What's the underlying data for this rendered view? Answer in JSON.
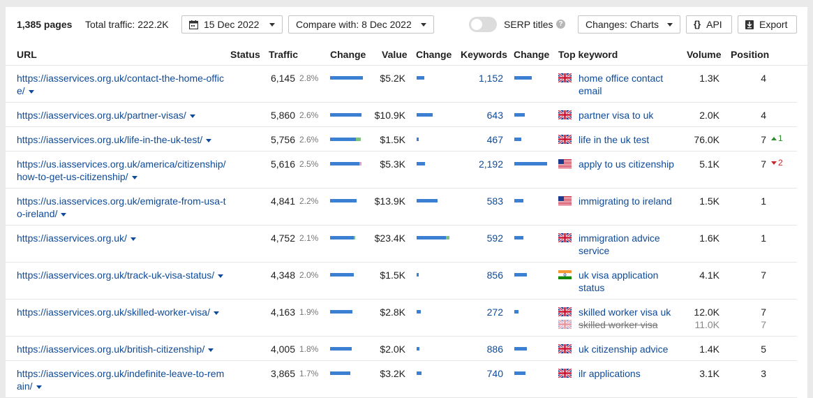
{
  "toolbar": {
    "pages": "1,385 pages",
    "traffic": "Total traffic: 222.2K",
    "date": "15 Dec 2022",
    "compare": "Compare with: 8 Dec 2022",
    "serp_titles": "SERP titles",
    "help": "?",
    "changes": "Changes: Charts",
    "api": "API",
    "api_icon": "{}",
    "export": "Export"
  },
  "headers": {
    "url": "URL",
    "status": "Status",
    "traffic": "Traffic",
    "change1": "Change",
    "value": "Value",
    "change2": "Change",
    "keywords": "Keywords",
    "change3": "Change",
    "top_keyword": "Top keyword",
    "volume": "Volume",
    "position": "Position"
  },
  "colors": {
    "bar": "#3a7fd1",
    "bar_up": "#7cc47c",
    "bar_down": "#e7a0c0",
    "link": "#0d4a99"
  },
  "rows": [
    {
      "url": "https://iasservices.org.uk/contact-the-home-office/",
      "traffic": "6,145",
      "pct": "2.8%",
      "value": "$5.2K",
      "keywords": "1,152",
      "top_keyword": "home office contact email",
      "flag": "uk",
      "volume": "1.3K",
      "position": "4",
      "delta": "",
      "traffic_change": 47,
      "value_change": 11,
      "keywords_change": 25
    },
    {
      "url": "https://iasservices.org.uk/partner-visas/",
      "traffic": "5,860",
      "pct": "2.6%",
      "value": "$10.9K",
      "keywords": "643",
      "top_keyword": "partner visa to uk",
      "flag": "uk",
      "volume": "2.0K",
      "position": "4",
      "delta": "",
      "traffic_change": 45,
      "value_change": 23,
      "keywords_change": 15
    },
    {
      "url": "https://iasservices.org.uk/life-in-the-uk-test/",
      "traffic": "5,756",
      "pct": "2.6%",
      "value": "$1.5K",
      "keywords": "467",
      "top_keyword": "life in the uk test",
      "flag": "uk",
      "volume": "76.0K",
      "position": "7",
      "delta": "1",
      "delta_dir": "up",
      "traffic_change": 37,
      "traffic_up": 7,
      "value_change": 3,
      "keywords_change": 10
    },
    {
      "url": "https://us.iasservices.org.uk/america/citizenship/how-to-get-us-citizenship/",
      "traffic": "5,616",
      "pct": "2.5%",
      "value": "$5.3K",
      "keywords": "2,192",
      "top_keyword": "apply to us citizenship",
      "flag": "us",
      "volume": "5.1K",
      "position": "7",
      "delta": "2",
      "delta_dir": "down",
      "traffic_change": 42,
      "traffic_down": 3,
      "value_change": 12,
      "keywords_change": 47
    },
    {
      "url": "https://us.iasservices.org.uk/emigrate-from-usa-to-ireland/",
      "traffic": "4,841",
      "pct": "2.2%",
      "value": "$13.9K",
      "keywords": "583",
      "top_keyword": "immigrating to ireland",
      "flag": "us",
      "volume": "1.5K",
      "position": "1",
      "delta": "",
      "traffic_change": 38,
      "value_change": 30,
      "keywords_change": 13
    },
    {
      "url": "https://iasservices.org.uk/",
      "traffic": "4,752",
      "pct": "2.1%",
      "value": "$23.4K",
      "keywords": "592",
      "top_keyword": "immigration advice service",
      "flag": "uk",
      "volume": "1.6K",
      "position": "1",
      "delta": "",
      "traffic_change": 34,
      "traffic_up": 2,
      "value_change": 42,
      "value_up": 5,
      "keywords_change": 13
    },
    {
      "url": "https://iasservices.org.uk/track-uk-visa-status/",
      "traffic": "4,348",
      "pct": "2.0%",
      "value": "$1.5K",
      "keywords": "856",
      "top_keyword": "uk visa application status",
      "flag": "in",
      "volume": "4.1K",
      "position": "7",
      "delta": "",
      "traffic_change": 34,
      "value_change": 3,
      "keywords_change": 18
    },
    {
      "url": "https://iasservices.org.uk/skilled-worker-visa/",
      "traffic": "4,163",
      "pct": "1.9%",
      "value": "$2.8K",
      "keywords": "272",
      "top_keyword": "skilled worker visa uk",
      "flag": "uk",
      "volume": "12.0K",
      "position": "7",
      "delta": "",
      "traffic_change": 32,
      "value_change": 6,
      "keywords_change": 6,
      "prev_keyword": "skilled worker visa",
      "prev_volume": "11.0K",
      "prev_position": "7"
    },
    {
      "url": "https://iasservices.org.uk/british-citizenship/",
      "traffic": "4,005",
      "pct": "1.8%",
      "value": "$2.0K",
      "keywords": "886",
      "top_keyword": "uk citizenship advice",
      "flag": "uk",
      "volume": "1.4K",
      "position": "5",
      "delta": "",
      "traffic_change": 31,
      "value_change": 4,
      "keywords_change": 18
    },
    {
      "url": "https://iasservices.org.uk/indefinite-leave-to-remain/",
      "traffic": "3,865",
      "pct": "1.7%",
      "value": "$3.2K",
      "keywords": "740",
      "top_keyword": "ilr applications",
      "flag": "uk",
      "volume": "3.1K",
      "position": "3",
      "delta": "",
      "traffic_change": 29,
      "value_change": 7,
      "keywords_change": 16
    }
  ]
}
